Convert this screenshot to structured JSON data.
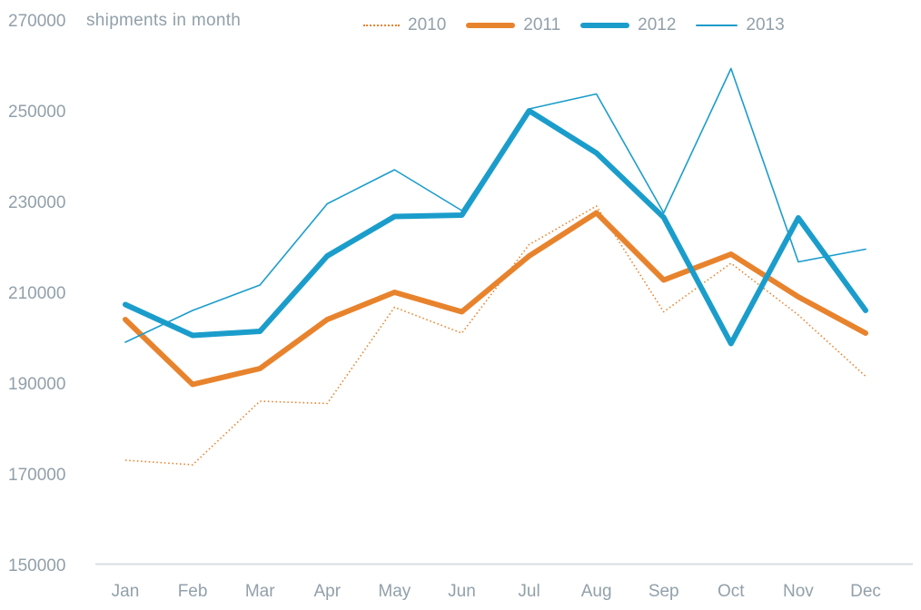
{
  "chart_data": {
    "type": "line",
    "title": "shipments in month",
    "categories": [
      "Jan",
      "Feb",
      "Mar",
      "Apr",
      "May",
      "Jun",
      "Jul",
      "Aug",
      "Sep",
      "Oct",
      "Nov",
      "Dec"
    ],
    "series": [
      {
        "name": "2010",
        "color": "#E8832D",
        "style": "dotted",
        "width": 1.6,
        "values": [
          173000,
          172000,
          186000,
          185500,
          206700,
          201000,
          220500,
          229000,
          205700,
          216400,
          205000,
          191500
        ]
      },
      {
        "name": "2011",
        "color": "#E8832D",
        "style": "solid",
        "width": 6,
        "values": [
          204000,
          189700,
          193200,
          204000,
          210000,
          205700,
          218000,
          227500,
          212700,
          218400,
          209000,
          201000
        ]
      },
      {
        "name": "2012",
        "color": "#1B9DCB",
        "style": "solid",
        "width": 6,
        "values": [
          207300,
          200500,
          201400,
          218000,
          226700,
          227000,
          250000,
          240700,
          226500,
          198700,
          226400,
          206000
        ]
      },
      {
        "name": "2013",
        "color": "#1B9DCB",
        "style": "solid",
        "width": 1.6,
        "values": [
          199000,
          206000,
          211600,
          229500,
          237000,
          228000,
          250400,
          253700,
          227500,
          259300,
          216700,
          219500
        ]
      }
    ],
    "ylim": [
      150000,
      270000
    ],
    "ytick_labels": [
      "270000",
      "250000",
      "230000",
      "210000",
      "190000",
      "170000",
      "150000"
    ],
    "ytick_values": [
      270000,
      250000,
      230000,
      210000,
      190000,
      170000,
      150000
    ],
    "grid": false,
    "legend_position": "top",
    "draw_order": [
      0,
      1,
      3,
      2
    ],
    "text_color": "#92A0AA",
    "axis_line_color": "#D9DDDF"
  }
}
